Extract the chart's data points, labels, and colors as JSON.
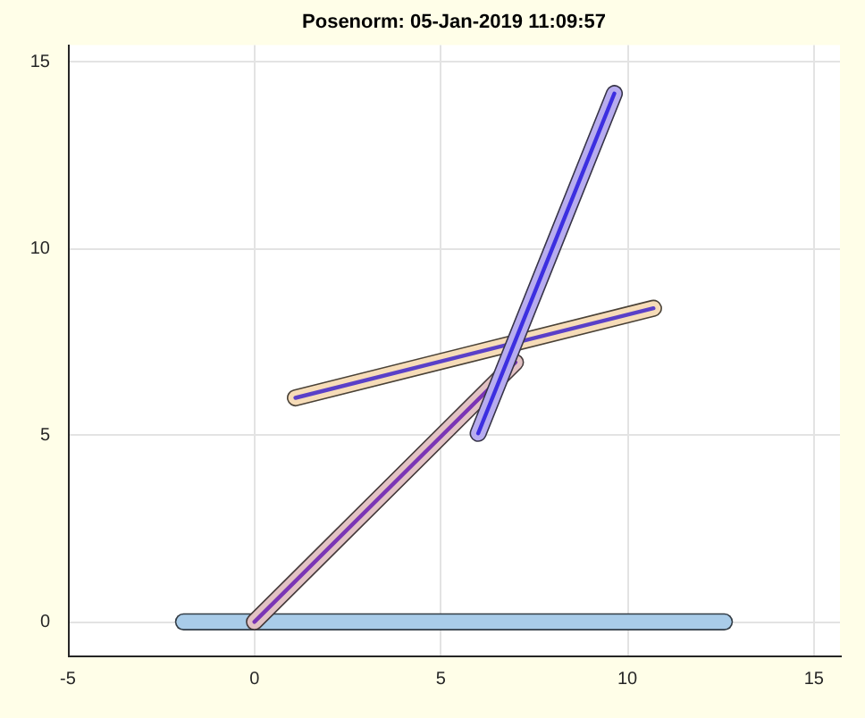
{
  "chart_data": {
    "type": "line",
    "title": "Posenorm: 05-Jan-2019 11:09:57",
    "series": [
      {
        "color": "#a9cce9",
        "x": [
          -1.9,
          12.6
        ],
        "values": [
          0,
          0
        ]
      },
      {
        "color": "#e2c2c4",
        "x": [
          0,
          7.0
        ],
        "values": [
          0,
          6.95
        ]
      },
      {
        "color": "#7a35b5",
        "x": [
          0,
          7.0
        ],
        "values": [
          0,
          6.95
        ]
      },
      {
        "color": "#f6dcb8",
        "x": [
          1.1,
          10.7
        ],
        "values": [
          6.0,
          8.4
        ]
      },
      {
        "color": "#5a40c8",
        "x": [
          1.1,
          10.7
        ],
        "values": [
          6.0,
          8.4
        ]
      },
      {
        "color": "#b7acef",
        "x": [
          6.0,
          9.65
        ],
        "values": [
          5.05,
          14.15
        ]
      },
      {
        "color": "#3c2fe0",
        "x": [
          6.0,
          9.65
        ],
        "values": [
          5.05,
          14.15
        ]
      }
    ],
    "xlim": [
      -5,
      15.7
    ],
    "ylim": [
      -0.9,
      15.45
    ],
    "xticks": [
      -5,
      0,
      5,
      10,
      15
    ],
    "yticks": [
      0,
      5,
      10,
      15
    ],
    "grid": true
  }
}
